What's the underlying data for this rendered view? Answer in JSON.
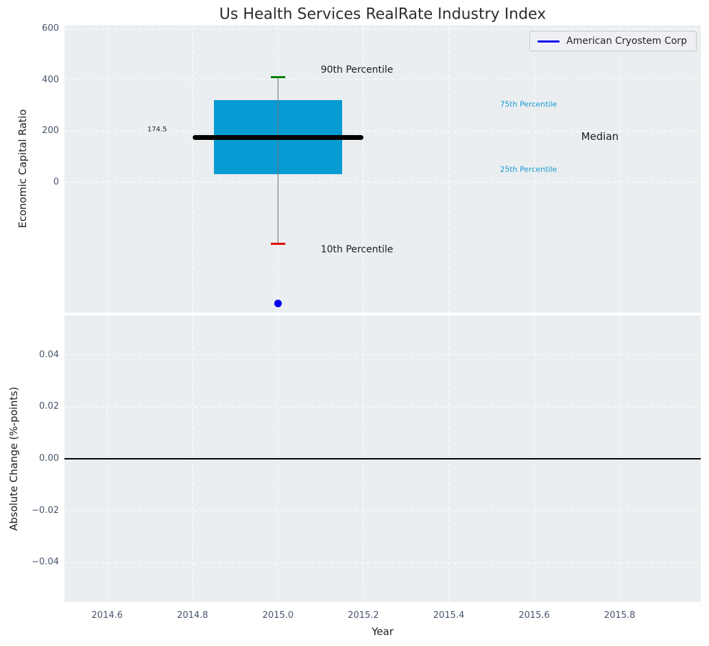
{
  "figure": {
    "title": "Us Health Services RealRate Industry Index"
  },
  "legend": {
    "label": "American Cryostem Corp"
  },
  "colors": {
    "figure_bg": "#ffffff",
    "axes_bg": "#eaeef0",
    "grid": "#ffffff",
    "tick_label": "#44546a",
    "text": "#1c1c1c",
    "title": "#2b2b2b",
    "box_fill": "#069bd3",
    "percentile_text": "#1899d1",
    "median_line": "#000000",
    "whisker": "#707070",
    "cap_90": "#008000",
    "cap_10": "#e00000",
    "point": "#0000ee",
    "legend_line": "#0000e8",
    "legend_bg": "#eef0f4",
    "legend_border": "#c9c9c9",
    "zero_line": "#000000"
  },
  "chart_data": [
    {
      "type": "box",
      "title": "Us Health Services RealRate Industry Index",
      "ylabel": "Economic Capital Ratio",
      "xlabel": "Year",
      "xlim": [
        2014.5,
        2015.99
      ],
      "ylim": [
        -511,
        614
      ],
      "yticks": [
        600,
        400,
        200,
        0
      ],
      "ytick_labels": [
        "600",
        "400",
        "200",
        "0"
      ],
      "xticks": [
        2014.6,
        2014.8,
        2015.0,
        2015.2,
        2015.4,
        2015.6,
        2015.8
      ],
      "grid": true,
      "legend_position": "upper right",
      "box": {
        "x": 2015.0,
        "p10": -240,
        "p25": 30,
        "median": 174.5,
        "p75": 320,
        "p90": 410,
        "box_half_width": 0.15,
        "median_half_width": 0.2,
        "cap_half_width": 0.017
      },
      "series": [
        {
          "name": "American Cryostem Corp",
          "marker": "circle",
          "points": [
            {
              "x": 2015.0,
              "y": -475
            }
          ]
        }
      ],
      "annotations": [
        {
          "text": "90th Percentile",
          "x": 2015.1,
          "y": 440,
          "size": 14,
          "color_key": "text",
          "align": "left"
        },
        {
          "text": "10th Percentile",
          "x": 2015.1,
          "y": -263,
          "size": 14,
          "color_key": "text",
          "align": "left"
        },
        {
          "text": "75th Percentile",
          "x": 2015.52,
          "y": 305,
          "size": 11,
          "color_key": "percentile_text",
          "align": "left"
        },
        {
          "text": "Median",
          "x": 2015.71,
          "y": 178,
          "size": 15,
          "color_key": "text",
          "align": "left"
        },
        {
          "text": "25th Percentile",
          "x": 2015.52,
          "y": 50,
          "size": 11,
          "color_key": "percentile_text",
          "align": "left"
        },
        {
          "text": "174.5",
          "x": 2014.74,
          "y": 205,
          "size": 10,
          "color_key": "text",
          "align": "right"
        }
      ]
    },
    {
      "type": "line",
      "ylabel": "Absolute Change (%-points)",
      "xlabel": "Year",
      "xlim": [
        2014.5,
        2015.99
      ],
      "ylim": [
        -0.0552,
        0.0552
      ],
      "yticks": [
        0.04,
        0.02,
        0.0,
        -0.02,
        -0.04
      ],
      "ytick_labels": [
        "0.04",
        "0.02",
        "0.00",
        "−0.02",
        "−0.04"
      ],
      "xticks": [
        2014.6,
        2014.8,
        2015.0,
        2015.2,
        2015.4,
        2015.6,
        2015.8
      ],
      "xtick_labels": [
        "2014.6",
        "2014.8",
        "2015.0",
        "2015.2",
        "2015.4",
        "2015.6",
        "2015.8"
      ],
      "zero_line_y": 0.0,
      "grid": true
    }
  ]
}
